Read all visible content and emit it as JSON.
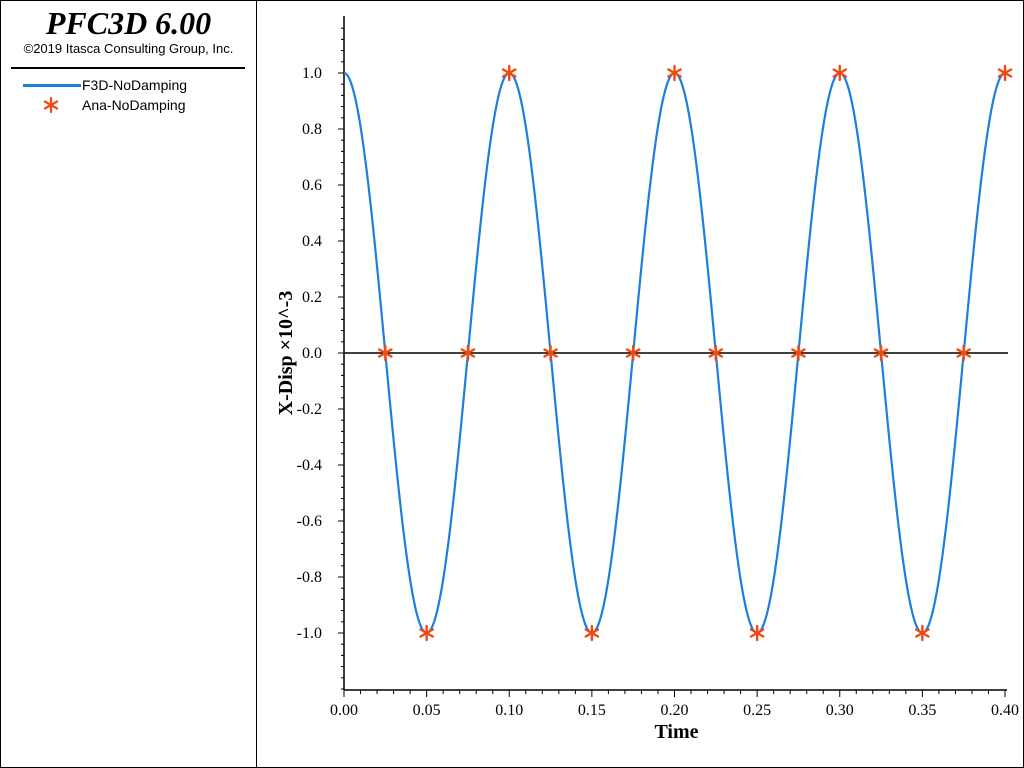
{
  "header": {
    "app_title": "PFC3D 6.00",
    "copyright": "©2019 Itasca Consulting Group, Inc."
  },
  "legend": {
    "items": [
      {
        "label": "F3D-NoDamping",
        "symbol": "line",
        "color": "#1c7ede"
      },
      {
        "label": "Ana-NoDamping",
        "symbol": "star",
        "color": "#f04a12"
      }
    ]
  },
  "chart_data": {
    "type": "line",
    "xlabel": "Time",
    "ylabel": "X-Disp ×10^-3",
    "xlim": [
      0.0,
      0.4
    ],
    "ylim": [
      -1.2,
      1.2
    ],
    "x_ticks": [
      "0.00",
      "0.05",
      "0.10",
      "0.15",
      "0.20",
      "0.25",
      "0.30",
      "0.35",
      "0.40"
    ],
    "y_ticks": [
      "1.0",
      "0.8",
      "0.6",
      "0.4",
      "0.2",
      "0.0",
      "-0.2",
      "-0.4",
      "-0.6",
      "-0.8",
      "-1.0"
    ],
    "grid": false,
    "zero_line": true,
    "series": [
      {
        "name": "F3D-NoDamping",
        "style": "line",
        "color": "#1c7ede",
        "function": "cos(2*pi*t/0.1)",
        "period": 0.1,
        "amplitude": 1.0,
        "x_range": [
          0.0,
          0.4
        ]
      },
      {
        "name": "Ana-NoDamping",
        "style": "star",
        "color": "#f04a12",
        "points": [
          [
            0.025,
            0.0
          ],
          [
            0.05,
            -1.0
          ],
          [
            0.075,
            0.0
          ],
          [
            0.1,
            1.0
          ],
          [
            0.125,
            0.0
          ],
          [
            0.15,
            -1.0
          ],
          [
            0.175,
            0.0
          ],
          [
            0.2,
            1.0
          ],
          [
            0.225,
            0.0
          ],
          [
            0.25,
            -1.0
          ],
          [
            0.275,
            0.0
          ],
          [
            0.3,
            1.0
          ],
          [
            0.325,
            0.0
          ],
          [
            0.35,
            -1.0
          ],
          [
            0.375,
            0.0
          ],
          [
            0.4,
            1.0
          ]
        ]
      }
    ]
  }
}
